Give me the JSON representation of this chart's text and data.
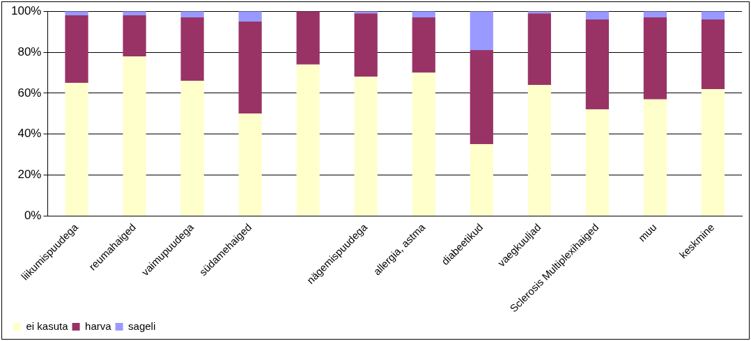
{
  "chart_data": {
    "type": "bar",
    "stacked": true,
    "categories": [
      "liikumispuudega",
      "reumahaiged",
      "vaimupuudega",
      "südamehaiged",
      null,
      "nägemispuudega",
      "allergia, astma",
      "diabeetikud",
      "vaegkuuljad",
      "Sclerosis Multiplexihaiged",
      "muu",
      "keskmine"
    ],
    "series": [
      {
        "name": "ei kasuta",
        "color": "#ffffcc",
        "values": [
          65,
          78,
          66,
          50,
          74,
          68,
          70,
          35,
          64,
          52,
          57,
          62
        ]
      },
      {
        "name": "harva",
        "color": "#993366",
        "values": [
          33,
          20,
          31,
          45,
          26,
          31,
          27,
          46,
          35,
          44,
          40,
          34
        ]
      },
      {
        "name": "sageli",
        "color": "#9999ff",
        "values": [
          2,
          2,
          3,
          5,
          0,
          1,
          3,
          19,
          1,
          4,
          3,
          4
        ]
      }
    ],
    "ylim": [
      0,
      100
    ],
    "yticks": [
      {
        "value": 0,
        "label": "0%"
      },
      {
        "value": 20,
        "label": "20%"
      },
      {
        "value": 40,
        "label": "40%"
      },
      {
        "value": 60,
        "label": "60%"
      },
      {
        "value": 80,
        "label": "80%"
      },
      {
        "value": 100,
        "label": "100%"
      }
    ],
    "grid": "y",
    "legend": "bottom left"
  }
}
